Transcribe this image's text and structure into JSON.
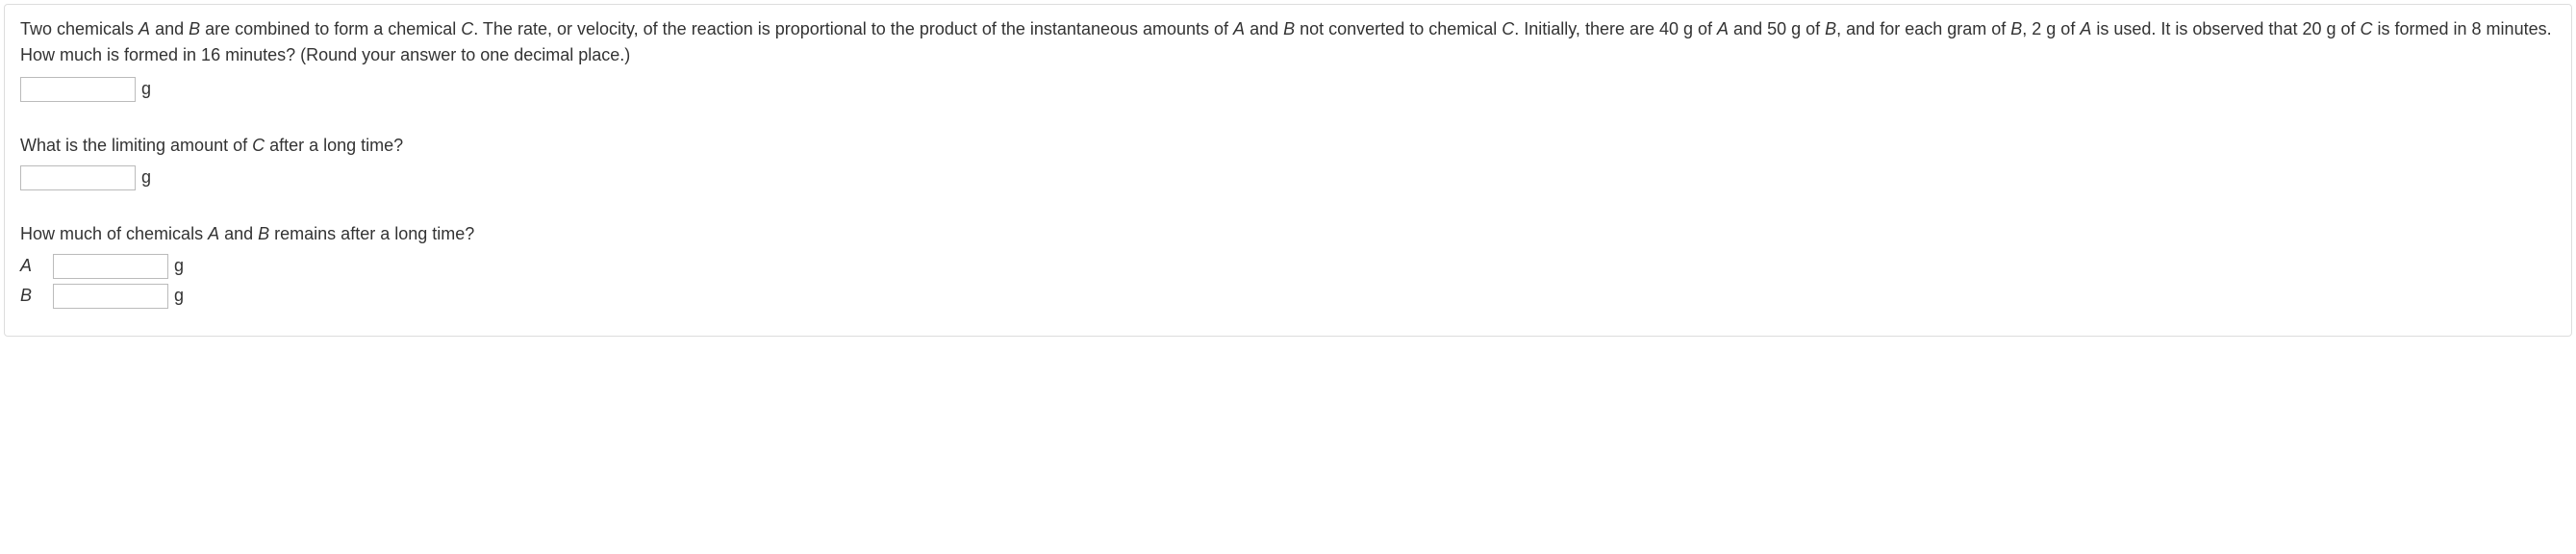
{
  "problem": {
    "line1": "Two chemicals A and B are combined to form a chemical C. The rate, or velocity, of the reaction is proportional to the product of the instantaneous amounts of A and B not converted to chemical C. Initially, there are 40 g of A and 50 g of B, and for each gram of B, 2 g of A is used. It is observed that 20 g of C is formed in 8 minutes. How much is formed in 16 minutes? (Round your answer to one decimal place.)"
  },
  "answers": {
    "c_at_16_unit": "g",
    "limiting_c_unit": "g",
    "a_remaining_unit": "g",
    "b_remaining_unit": "g"
  },
  "questions": {
    "q2": "What is the limiting amount of C after a long time?",
    "q3": "How much of chemicals A and B remains after a long time?"
  },
  "labels": {
    "a": "A",
    "b": "B"
  }
}
